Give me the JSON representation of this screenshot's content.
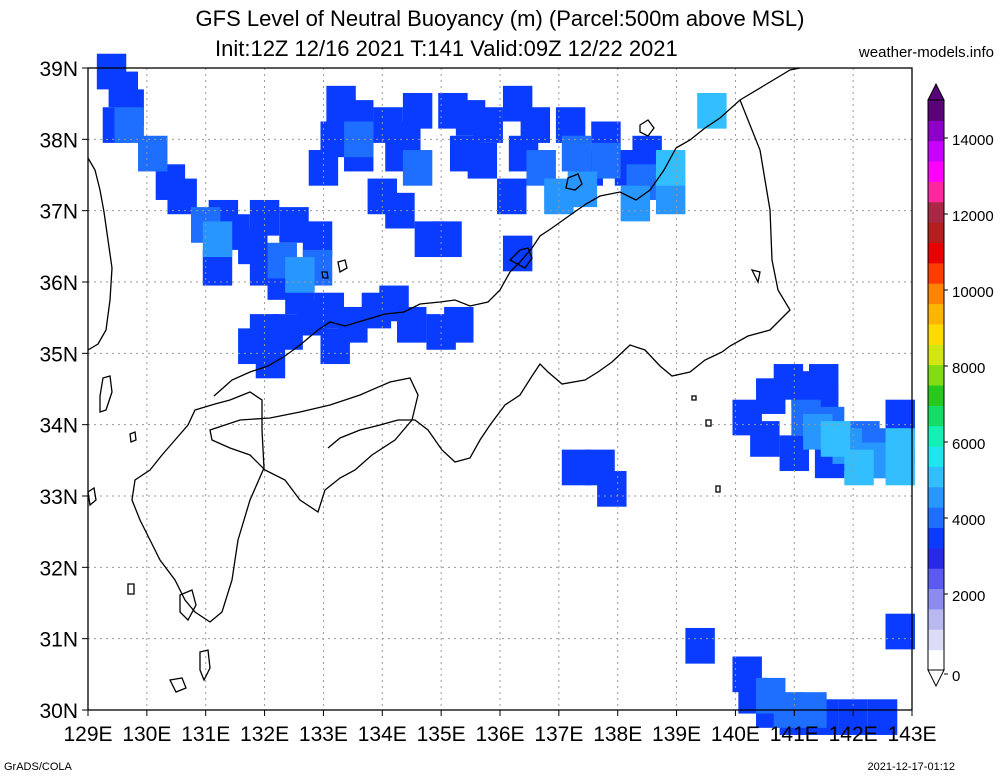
{
  "title_line1": "GFS Level of Neutral Buoyancy (m) (Parcel:500m above MSL)",
  "title_line2": "Init:12Z 12/16 2021 T:141 Valid:09Z 12/22 2021",
  "site": "weather-models.info",
  "credit_left": "GrADS/COLA",
  "credit_right": "2021-12-17-01:12",
  "lon_labels": [
    "129E",
    "130E",
    "131E",
    "132E",
    "133E",
    "134E",
    "135E",
    "136E",
    "137E",
    "138E",
    "139E",
    "140E",
    "141E",
    "142E",
    "143E"
  ],
  "lat_labels": [
    "39N",
    "38N",
    "37N",
    "36N",
    "35N",
    "34N",
    "33N",
    "32N",
    "31N",
    "30N"
  ],
  "colorbar": {
    "labels": [
      "0",
      "2000",
      "4000",
      "6000",
      "8000",
      "10000",
      "12000",
      "14000"
    ],
    "colors": [
      "#ffffff",
      "#dcdcf8",
      "#b9b9f0",
      "#8c8cf0",
      "#5a5af0",
      "#2828e6",
      "#0a3cff",
      "#1e6eff",
      "#2896ff",
      "#32beff",
      "#1ee6f0",
      "#14f0b4",
      "#14dc64",
      "#28c81e",
      "#82dc14",
      "#d2e614",
      "#ffdc00",
      "#ffb400",
      "#ff8200",
      "#ff3c00",
      "#e60000",
      "#b41e1e",
      "#aa2846",
      "#ff28a0",
      "#ff00ff",
      "#c800ff",
      "#8c00c8",
      "#5a0078"
    ]
  },
  "fields": [
    {
      "color": "#0a3cff",
      "cells": [
        [
          129.4,
          38.95
        ],
        [
          129.6,
          38.7
        ],
        [
          129.7,
          38.45
        ],
        [
          129.5,
          38.2
        ],
        [
          131.5,
          36.7
        ],
        [
          131.8,
          36.5
        ],
        [
          132.0,
          36.9
        ],
        [
          131.3,
          36.9
        ],
        [
          130.4,
          37.4
        ],
        [
          130.6,
          37.2
        ],
        [
          131.2,
          36.2
        ],
        [
          132.0,
          36.2
        ],
        [
          132.3,
          36.0
        ],
        [
          132.6,
          35.8
        ],
        [
          132.8,
          35.5
        ],
        [
          132.0,
          35.3
        ],
        [
          131.8,
          35.1
        ],
        [
          132.1,
          34.9
        ],
        [
          133.3,
          38.5
        ],
        [
          133.6,
          38.3
        ],
        [
          133.2,
          38.0
        ],
        [
          133.6,
          37.8
        ],
        [
          133.0,
          37.6
        ],
        [
          134.0,
          37.2
        ],
        [
          134.3,
          37.0
        ],
        [
          134.1,
          38.2
        ],
        [
          134.4,
          38.0
        ],
        [
          134.6,
          38.4
        ],
        [
          134.3,
          37.8
        ],
        [
          135.2,
          38.4
        ],
        [
          135.5,
          38.3
        ],
        [
          135.8,
          38.2
        ],
        [
          135.4,
          37.8
        ],
        [
          135.7,
          37.7
        ],
        [
          136.3,
          38.5
        ],
        [
          136.6,
          38.2
        ],
        [
          136.4,
          37.8
        ],
        [
          136.2,
          37.2
        ],
        [
          137.2,
          38.2
        ],
        [
          137.5,
          37.6
        ],
        [
          137.8,
          38.0
        ],
        [
          138.2,
          37.6
        ],
        [
          138.5,
          37.8
        ],
        [
          135.1,
          36.6
        ],
        [
          134.8,
          36.6
        ],
        [
          133.1,
          35.6
        ],
        [
          133.5,
          35.4
        ],
        [
          133.9,
          35.6
        ],
        [
          134.2,
          35.7
        ],
        [
          134.5,
          35.4
        ],
        [
          135.0,
          35.3
        ],
        [
          135.3,
          35.4
        ],
        [
          132.4,
          35.3
        ],
        [
          133.2,
          35.1
        ],
        [
          132.9,
          36.6
        ],
        [
          132.5,
          36.8
        ],
        [
          136.3,
          36.4
        ],
        [
          140.6,
          34.4
        ],
        [
          140.9,
          34.6
        ],
        [
          141.2,
          34.5
        ],
        [
          141.5,
          34.6
        ],
        [
          141.5,
          34.3
        ],
        [
          140.2,
          34.1
        ],
        [
          140.5,
          33.8
        ],
        [
          141.0,
          33.6
        ],
        [
          141.6,
          33.5
        ],
        [
          142.0,
          33.6
        ],
        [
          142.3,
          33.5
        ],
        [
          142.8,
          34.1
        ],
        [
          142.8,
          31.1
        ],
        [
          139.4,
          30.9
        ],
        [
          140.2,
          30.5
        ],
        [
          140.3,
          30.2
        ],
        [
          140.6,
          30.0
        ],
        [
          141.0,
          29.9
        ],
        [
          141.5,
          29.9
        ],
        [
          142.0,
          29.9
        ],
        [
          142.5,
          29.9
        ],
        [
          137.3,
          33.4
        ],
        [
          137.7,
          33.4
        ],
        [
          137.9,
          33.1
        ]
      ]
    },
    {
      "color": "#1e6eff",
      "cells": [
        [
          129.7,
          38.2
        ],
        [
          130.1,
          37.8
        ],
        [
          131.0,
          36.8
        ],
        [
          132.3,
          36.3
        ],
        [
          132.9,
          36.2
        ],
        [
          133.6,
          38.0
        ],
        [
          134.6,
          37.6
        ],
        [
          136.7,
          37.6
        ],
        [
          137.3,
          37.8
        ],
        [
          137.8,
          37.7
        ],
        [
          138.4,
          37.4
        ],
        [
          141.2,
          34.1
        ],
        [
          141.6,
          34.0
        ],
        [
          142.2,
          33.8
        ],
        [
          142.6,
          33.7
        ],
        [
          140.6,
          30.2
        ],
        [
          140.9,
          30.0
        ],
        [
          141.3,
          30.0
        ]
      ]
    },
    {
      "color": "#2896ff",
      "cells": [
        [
          131.2,
          36.6
        ],
        [
          132.6,
          36.1
        ],
        [
          137.0,
          37.2
        ],
        [
          137.4,
          37.3
        ],
        [
          138.3,
          37.1
        ],
        [
          138.9,
          37.2
        ],
        [
          141.4,
          33.9
        ],
        [
          141.9,
          33.7
        ],
        [
          142.4,
          33.5
        ]
      ]
    },
    {
      "color": "#32beff",
      "cells": [
        [
          139.6,
          38.4
        ],
        [
          138.9,
          37.6
        ],
        [
          141.7,
          33.8
        ],
        [
          142.1,
          33.4
        ],
        [
          142.8,
          33.7
        ],
        [
          142.8,
          33.4
        ]
      ]
    }
  ]
}
